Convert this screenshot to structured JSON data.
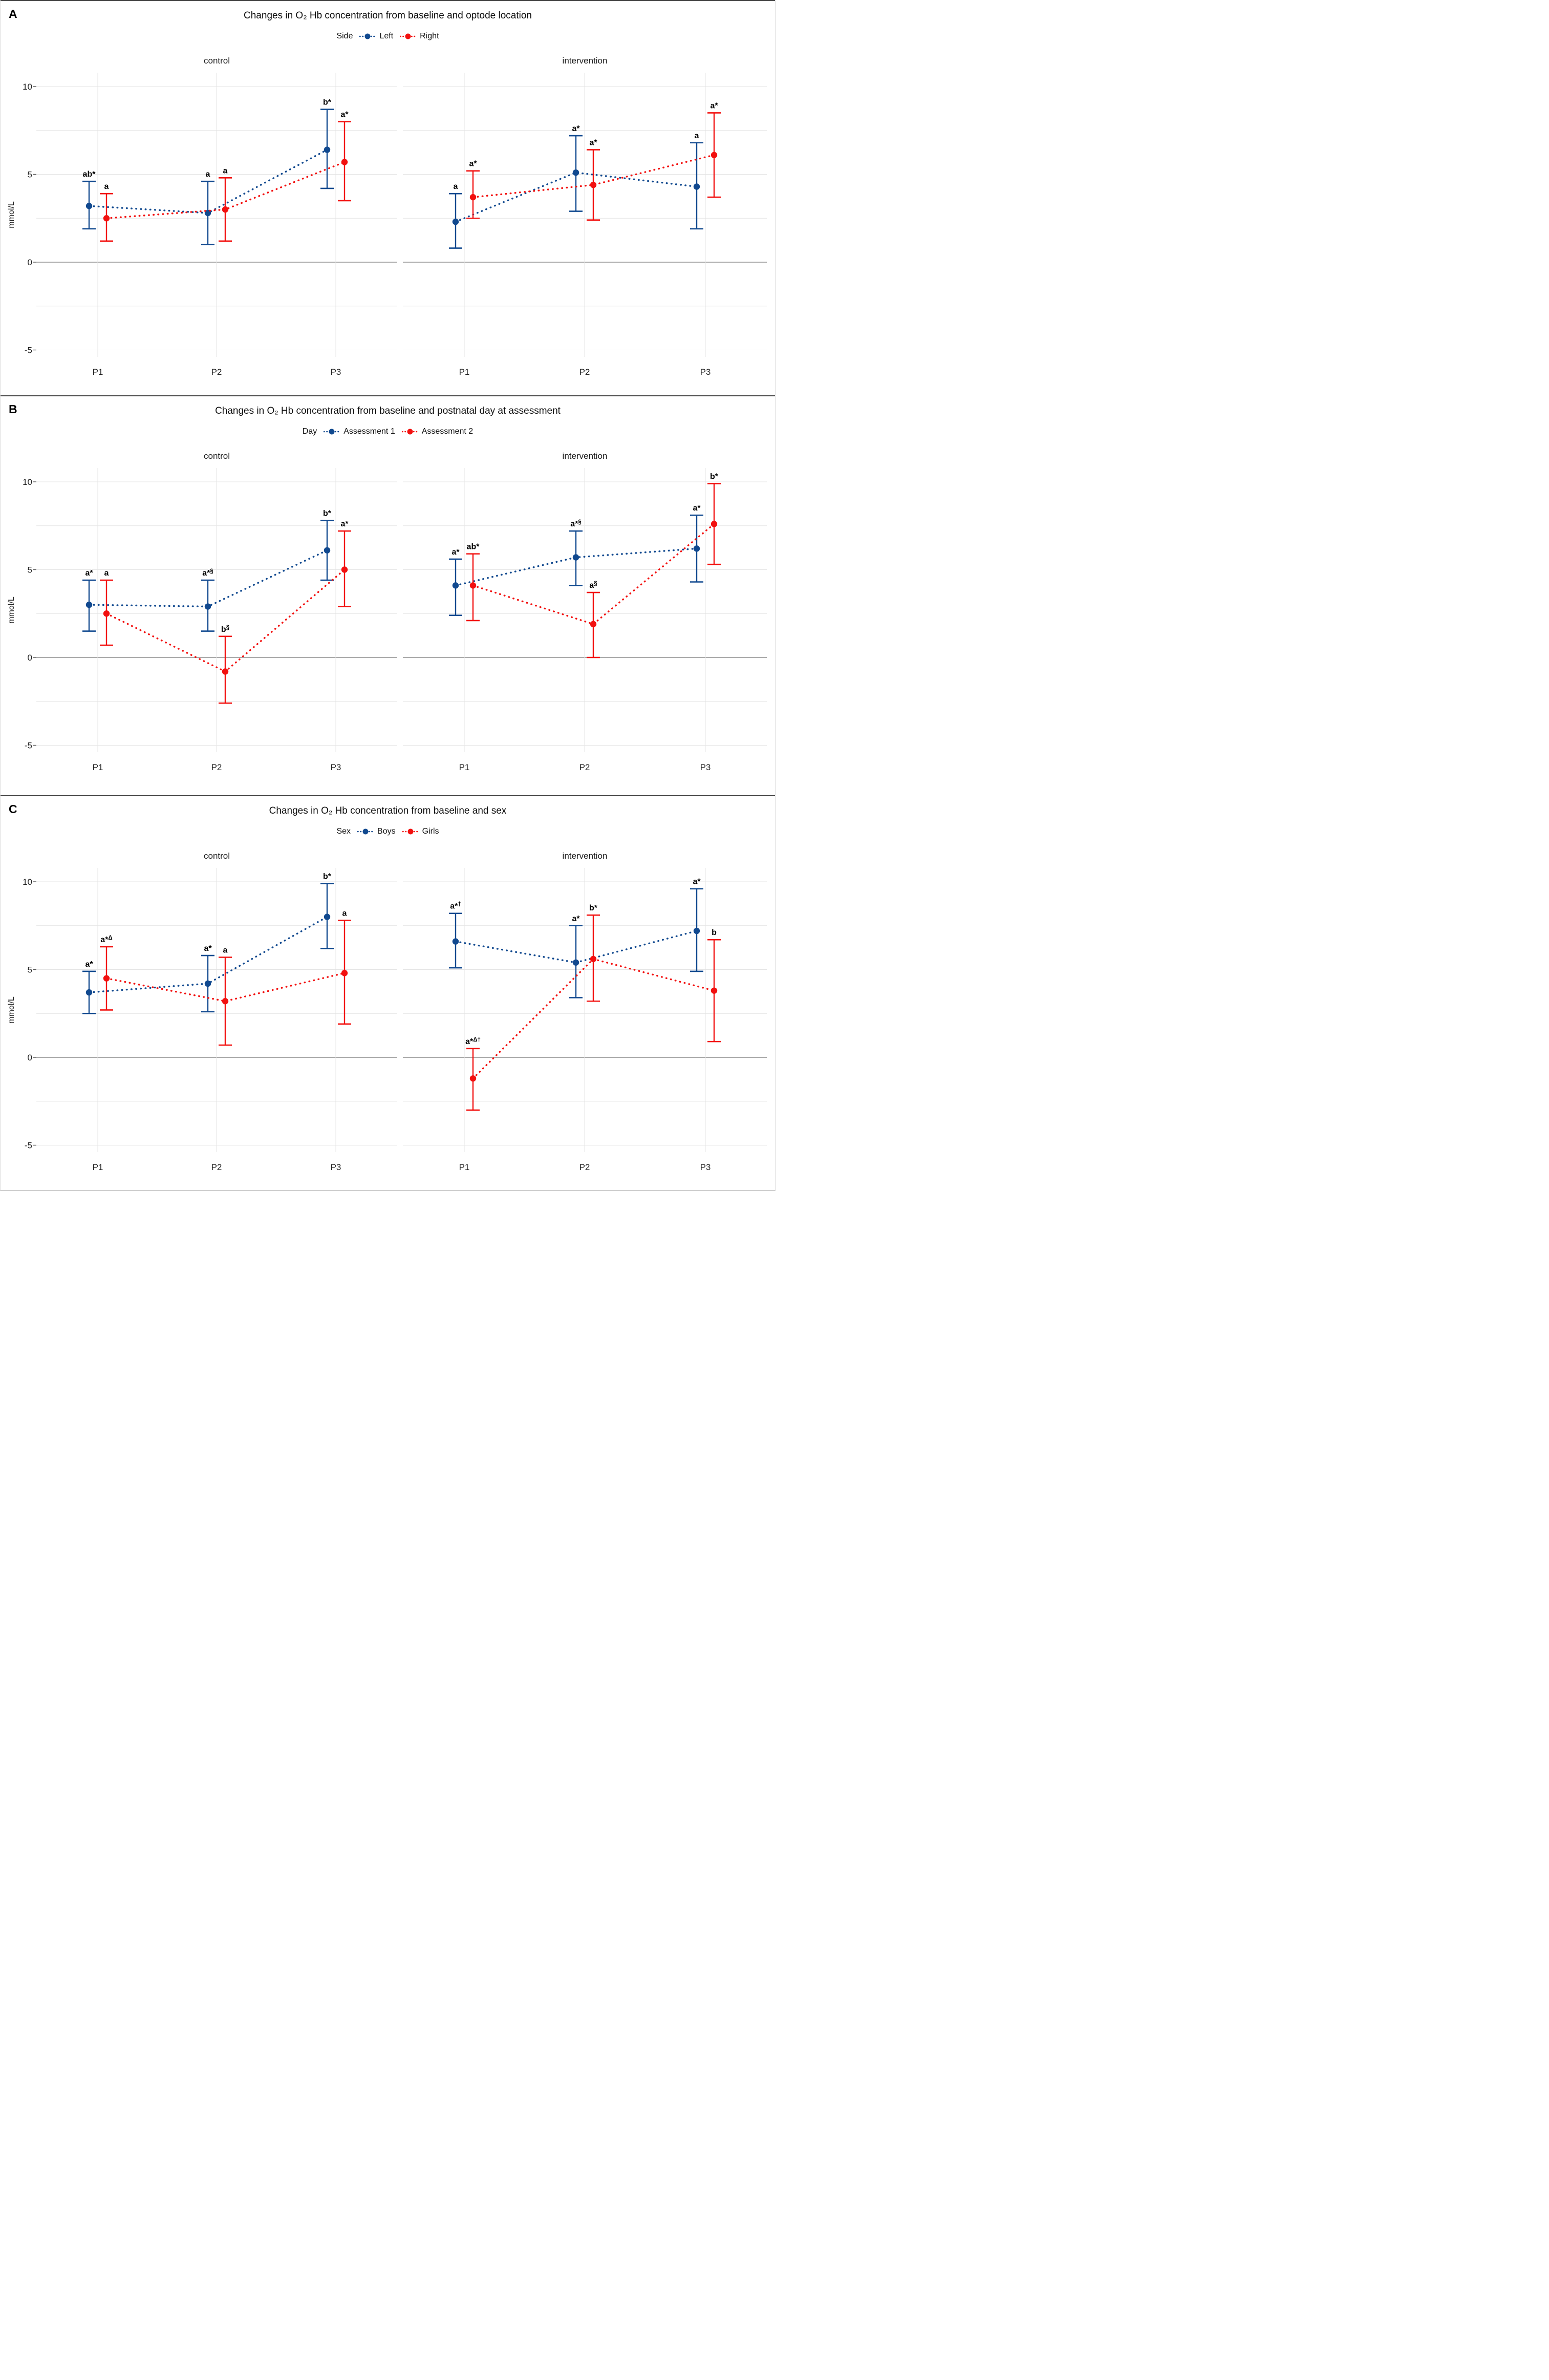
{
  "figure": {
    "y_axis_label": "mmol/L"
  },
  "chart_data": [
    {
      "type": "pointrange-line",
      "letter": "A",
      "title": "Changes in  O₂ Hb concentration from baseline and optode location",
      "legend": {
        "title": "Side",
        "items": [
          {
            "label": "Left",
            "color": "#11498F"
          },
          {
            "label": "Right",
            "color": "#F2100F"
          }
        ]
      },
      "ylabel": "mmol/L",
      "categories": [
        "P1",
        "P2",
        "P3"
      ],
      "yticks": [
        10,
        5,
        0,
        -5
      ],
      "minor_gridlines": [
        7.5,
        2.5,
        -2.5
      ],
      "ylim": [
        -6.2,
        10.9
      ],
      "facets": [
        {
          "label": "control",
          "series": [
            {
              "name": "Left",
              "color": "#11498F",
              "points": [
                {
                  "x": "P1",
                  "y": 3.2,
                  "lo": 1.9,
                  "hi": 4.6,
                  "annotation": "ab*"
                },
                {
                  "x": "P2",
                  "y": 2.8,
                  "lo": 1.0,
                  "hi": 4.6,
                  "annotation": "a"
                },
                {
                  "x": "P3",
                  "y": 6.4,
                  "lo": 4.2,
                  "hi": 8.7,
                  "annotation": "b*"
                }
              ]
            },
            {
              "name": "Right",
              "color": "#F2100F",
              "points": [
                {
                  "x": "P1",
                  "y": 2.5,
                  "lo": 1.2,
                  "hi": 3.9,
                  "annotation": "a"
                },
                {
                  "x": "P2",
                  "y": 3.0,
                  "lo": 1.2,
                  "hi": 4.8,
                  "annotation": "a"
                },
                {
                  "x": "P3",
                  "y": 5.7,
                  "lo": 3.5,
                  "hi": 8.0,
                  "annotation": "a*"
                }
              ]
            }
          ]
        },
        {
          "label": "intervention",
          "series": [
            {
              "name": "Left",
              "color": "#11498F",
              "points": [
                {
                  "x": "P1",
                  "y": 2.3,
                  "lo": 0.8,
                  "hi": 3.9,
                  "annotation": "a"
                },
                {
                  "x": "P2",
                  "y": 5.1,
                  "lo": 2.9,
                  "hi": 7.2,
                  "annotation": "a*"
                },
                {
                  "x": "P3",
                  "y": 4.3,
                  "lo": 1.9,
                  "hi": 6.8,
                  "annotation": "a"
                }
              ]
            },
            {
              "name": "Right",
              "color": "#F2100F",
              "points": [
                {
                  "x": "P1",
                  "y": 3.7,
                  "lo": 2.5,
                  "hi": 5.2,
                  "annotation": "a*"
                },
                {
                  "x": "P2",
                  "y": 4.4,
                  "lo": 2.4,
                  "hi": 6.4,
                  "annotation": "a*"
                },
                {
                  "x": "P3",
                  "y": 6.1,
                  "lo": 3.7,
                  "hi": 8.5,
                  "annotation": "a*"
                }
              ]
            }
          ]
        }
      ]
    },
    {
      "type": "pointrange-line",
      "letter": "B",
      "title": "Changes in  O₂ Hb concentration from baseline and postnatal day at assessment",
      "legend": {
        "title": "Day",
        "items": [
          {
            "label": "Assessment 1",
            "color": "#11498F"
          },
          {
            "label": "Assessment 2",
            "color": "#F2100F"
          }
        ]
      },
      "ylabel": "mmol/L",
      "categories": [
        "P1",
        "P2",
        "P3"
      ],
      "yticks": [
        10,
        5,
        0,
        -5
      ],
      "minor_gridlines": [
        7.5,
        2.5,
        -2.5
      ],
      "ylim": [
        -6.2,
        10.9
      ],
      "facets": [
        {
          "label": "control",
          "series": [
            {
              "name": "Assessment 1",
              "color": "#11498F",
              "points": [
                {
                  "x": "P1",
                  "y": 3.0,
                  "lo": 1.5,
                  "hi": 4.4,
                  "annotation": "a*"
                },
                {
                  "x": "P2",
                  "y": 2.9,
                  "lo": 1.5,
                  "hi": 4.4,
                  "annotation": "a*§"
                },
                {
                  "x": "P3",
                  "y": 6.1,
                  "lo": 4.4,
                  "hi": 7.8,
                  "annotation": "b*"
                }
              ]
            },
            {
              "name": "Assessment 2",
              "color": "#F2100F",
              "points": [
                {
                  "x": "P1",
                  "y": 2.5,
                  "lo": 0.7,
                  "hi": 4.4,
                  "annotation": "a"
                },
                {
                  "x": "P2",
                  "y": -0.8,
                  "lo": -2.6,
                  "hi": 1.2,
                  "annotation": "b§"
                },
                {
                  "x": "P3",
                  "y": 5.0,
                  "lo": 2.9,
                  "hi": 7.2,
                  "annotation": "a*"
                }
              ]
            }
          ]
        },
        {
          "label": "intervention",
          "series": [
            {
              "name": "Assessment 1",
              "color": "#11498F",
              "points": [
                {
                  "x": "P1",
                  "y": 4.1,
                  "lo": 2.4,
                  "hi": 5.6,
                  "annotation": "a*"
                },
                {
                  "x": "P2",
                  "y": 5.7,
                  "lo": 4.1,
                  "hi": 7.2,
                  "annotation": "a*§"
                },
                {
                  "x": "P3",
                  "y": 6.2,
                  "lo": 4.3,
                  "hi": 8.1,
                  "annotation": "a*"
                }
              ]
            },
            {
              "name": "Assessment 2",
              "color": "#F2100F",
              "points": [
                {
                  "x": "P1",
                  "y": 4.1,
                  "lo": 2.1,
                  "hi": 5.9,
                  "annotation": "ab*"
                },
                {
                  "x": "P2",
                  "y": 1.9,
                  "lo": 0.0,
                  "hi": 3.7,
                  "annotation": "a§"
                },
                {
                  "x": "P3",
                  "y": 7.6,
                  "lo": 5.3,
                  "hi": 9.9,
                  "annotation": "b*"
                }
              ]
            }
          ]
        }
      ]
    },
    {
      "type": "pointrange-line",
      "letter": "C",
      "title": "Changes in  O₂ Hb concentration from baseline and sex",
      "legend": {
        "title": "Sex",
        "items": [
          {
            "label": "Boys",
            "color": "#11498F"
          },
          {
            "label": "Girls",
            "color": "#F2100F"
          }
        ]
      },
      "ylabel": "mmol/L",
      "categories": [
        "P1",
        "P2",
        "P3"
      ],
      "yticks": [
        10,
        5,
        0,
        -5
      ],
      "minor_gridlines": [
        7.5,
        2.5,
        -2.5
      ],
      "ylim": [
        -6.2,
        10.9
      ],
      "facets": [
        {
          "label": "control",
          "series": [
            {
              "name": "Boys",
              "color": "#11498F",
              "points": [
                {
                  "x": "P1",
                  "y": 3.7,
                  "lo": 2.5,
                  "hi": 4.9,
                  "annotation": "a*"
                },
                {
                  "x": "P2",
                  "y": 4.2,
                  "lo": 2.6,
                  "hi": 5.8,
                  "annotation": "a*"
                },
                {
                  "x": "P3",
                  "y": 8.0,
                  "lo": 6.2,
                  "hi": 9.9,
                  "annotation": "b*"
                }
              ]
            },
            {
              "name": "Girls",
              "color": "#F2100F",
              "points": [
                {
                  "x": "P1",
                  "y": 4.5,
                  "lo": 2.7,
                  "hi": 6.3,
                  "annotation": "a*Δ"
                },
                {
                  "x": "P2",
                  "y": 3.2,
                  "lo": 0.7,
                  "hi": 5.7,
                  "annotation": "a"
                },
                {
                  "x": "P3",
                  "y": 4.8,
                  "lo": 1.9,
                  "hi": 7.8,
                  "annotation": "a"
                }
              ]
            }
          ]
        },
        {
          "label": "intervention",
          "series": [
            {
              "name": "Boys",
              "color": "#11498F",
              "points": [
                {
                  "x": "P1",
                  "y": 6.6,
                  "lo": 5.1,
                  "hi": 8.2,
                  "annotation": "a*†"
                },
                {
                  "x": "P2",
                  "y": 5.4,
                  "lo": 3.4,
                  "hi": 7.5,
                  "annotation": "a*"
                },
                {
                  "x": "P3",
                  "y": 7.2,
                  "lo": 4.9,
                  "hi": 9.6,
                  "annotation": "a*"
                }
              ]
            },
            {
              "name": "Girls",
              "color": "#F2100F",
              "points": [
                {
                  "x": "P1",
                  "y": -1.2,
                  "lo": -3.0,
                  "hi": 0.5,
                  "annotation": "a*Δ†"
                },
                {
                  "x": "P2",
                  "y": 5.6,
                  "lo": 3.2,
                  "hi": 8.1,
                  "annotation": "b*"
                },
                {
                  "x": "P3",
                  "y": 3.8,
                  "lo": 0.9,
                  "hi": 6.7,
                  "annotation": "b"
                }
              ]
            }
          ]
        }
      ]
    }
  ]
}
